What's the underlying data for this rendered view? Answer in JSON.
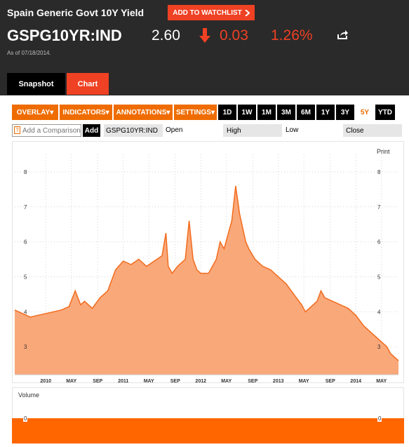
{
  "header": {
    "name": "Spain Generic Govt 10Y Yield",
    "watch_label": "ADD TO WATCHLIST",
    "ticker": "GSPG10YR:IND",
    "price": "2.60",
    "change": "0.03",
    "pct": "1.26%",
    "as_of": "As of 07/18/2014.",
    "tabs": [
      "Snapshot",
      "Chart"
    ]
  },
  "toolbar": {
    "menus": [
      "OVERLAY",
      "INDICATORS",
      "ANNOTATIONS",
      "SETTINGS"
    ],
    "ranges": [
      "1D",
      "1W",
      "1M",
      "3M",
      "6M",
      "1Y",
      "3Y",
      "5Y",
      "YTD"
    ],
    "active_range": "5Y"
  },
  "compare": {
    "placeholder": "Add a Comparison",
    "add_label": "Add",
    "ticker": "GSPG10YR:IND",
    "open": "Open",
    "high": "High",
    "low": "Low",
    "close": "Close"
  },
  "print_label": "Print",
  "volume_label": "Volume",
  "volume_zero": "0",
  "colors": {
    "accent": "#ef4123",
    "orange": "#ef6c00",
    "area_fill": "#f9a87a",
    "line": "#f26b1d",
    "volume": "#ff6600"
  },
  "icons": {
    "down": "arrow-down-icon",
    "share": "share-icon",
    "help": "help-icon",
    "chevron": "chevron-right-icon"
  },
  "chart_data": {
    "type": "area",
    "title": "",
    "xlabel": "",
    "ylabel": "",
    "ylim": [
      2.2,
      8.5
    ],
    "y_ticks": [
      3,
      4,
      5,
      6,
      7,
      8
    ],
    "x_tick_labels": [
      "2010",
      "MAY",
      "SEP",
      "2011",
      "MAY",
      "SEP",
      "2012",
      "MAY",
      "SEP",
      "2013",
      "MAY",
      "SEP",
      "2014",
      "MAY"
    ],
    "x_tick_dates": [
      2010.0,
      2010.33,
      2010.67,
      2011.0,
      2011.33,
      2011.67,
      2012.0,
      2012.33,
      2012.67,
      2013.0,
      2013.33,
      2013.67,
      2014.0,
      2014.33
    ],
    "x_range": [
      2009.6,
      2014.55
    ],
    "series": [
      {
        "x": [
          2009.6,
          2009.7,
          2009.8,
          2009.9,
          2010.0,
          2010.1,
          2010.2,
          2010.3,
          2010.38,
          2010.45,
          2010.5,
          2010.6,
          2010.7,
          2010.8,
          2010.9,
          2011.0,
          2011.05,
          2011.1,
          2011.2,
          2011.3,
          2011.4,
          2011.5,
          2011.55,
          2011.58,
          2011.63,
          2011.7,
          2011.8,
          2011.85,
          2011.9,
          2011.95,
          2012.0,
          2012.1,
          2012.2,
          2012.25,
          2012.3,
          2012.35,
          2012.4,
          2012.45,
          2012.5,
          2012.55,
          2012.58,
          2012.62,
          2012.7,
          2012.8,
          2012.9,
          2013.0,
          2013.1,
          2013.2,
          2013.3,
          2013.35,
          2013.4,
          2013.5,
          2013.55,
          2013.6,
          2013.7,
          2013.8,
          2013.9,
          2014.0,
          2014.1,
          2014.2,
          2014.3,
          2014.4,
          2014.45,
          2014.5,
          2014.55
        ],
        "y": [
          4.05,
          3.95,
          3.85,
          3.9,
          3.95,
          4.0,
          4.05,
          4.15,
          4.6,
          4.2,
          4.3,
          4.1,
          4.4,
          4.6,
          5.2,
          5.45,
          5.4,
          5.35,
          5.5,
          5.3,
          5.45,
          5.6,
          6.25,
          5.3,
          5.1,
          5.3,
          5.5,
          6.6,
          5.5,
          5.2,
          5.1,
          5.1,
          5.5,
          6.0,
          5.8,
          6.2,
          6.6,
          7.6,
          6.8,
          6.3,
          6.0,
          5.8,
          5.5,
          5.3,
          5.2,
          5.0,
          4.8,
          4.5,
          4.2,
          4.0,
          4.1,
          4.3,
          4.6,
          4.4,
          4.3,
          4.2,
          4.1,
          3.9,
          3.6,
          3.4,
          3.2,
          3.0,
          2.8,
          2.7,
          2.6
        ]
      }
    ]
  }
}
